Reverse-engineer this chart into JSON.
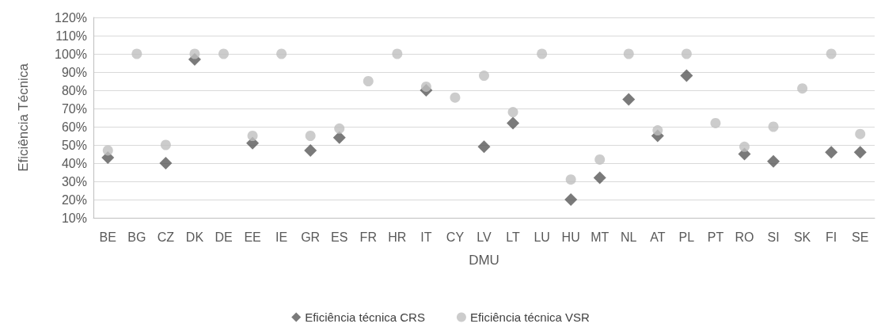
{
  "chart_data": {
    "type": "scatter",
    "xlabel": "DMU",
    "ylabel": "Eficiência Técnica",
    "categories": [
      "BE",
      "BG",
      "CZ",
      "DK",
      "DE",
      "EE",
      "IE",
      "GR",
      "ES",
      "FR",
      "HR",
      "IT",
      "CY",
      "LV",
      "LT",
      "LU",
      "HU",
      "MT",
      "NL",
      "AT",
      "PL",
      "PT",
      "RO",
      "SI",
      "SK",
      "FI",
      "SE"
    ],
    "series": [
      {
        "name": "Eficiência técnica CRS",
        "color": "#595959",
        "marker": "diamond",
        "values": [
          43,
          null,
          40,
          97,
          null,
          51,
          null,
          47,
          54,
          null,
          null,
          80,
          null,
          49,
          62,
          null,
          20,
          32,
          75,
          55,
          88,
          null,
          45,
          41,
          null,
          46,
          46
        ]
      },
      {
        "name": "Eficiência técnica VSR",
        "color": "#bfbfbf",
        "marker": "circle",
        "values": [
          47,
          100,
          50,
          100,
          100,
          55,
          100,
          55,
          59,
          85,
          100,
          82,
          76,
          88,
          68,
          100,
          31,
          42,
          100,
          58,
          100,
          62,
          49,
          60,
          81,
          100,
          56
        ]
      }
    ],
    "ylim": [
      10,
      120
    ],
    "yticks": [
      {
        "value": 10,
        "label": "10%"
      },
      {
        "value": 20,
        "label": "20%"
      },
      {
        "value": 30,
        "label": "30%"
      },
      {
        "value": 40,
        "label": "40%"
      },
      {
        "value": 50,
        "label": "50%"
      },
      {
        "value": 60,
        "label": "60%"
      },
      {
        "value": 70,
        "label": "70%"
      },
      {
        "value": 80,
        "label": "80%"
      },
      {
        "value": 90,
        "label": "90%"
      },
      {
        "value": 100,
        "label": "100%"
      },
      {
        "value": 110,
        "label": "110%"
      },
      {
        "value": 120,
        "label": "120%"
      }
    ],
    "grid": "y",
    "legend": "bottom"
  }
}
